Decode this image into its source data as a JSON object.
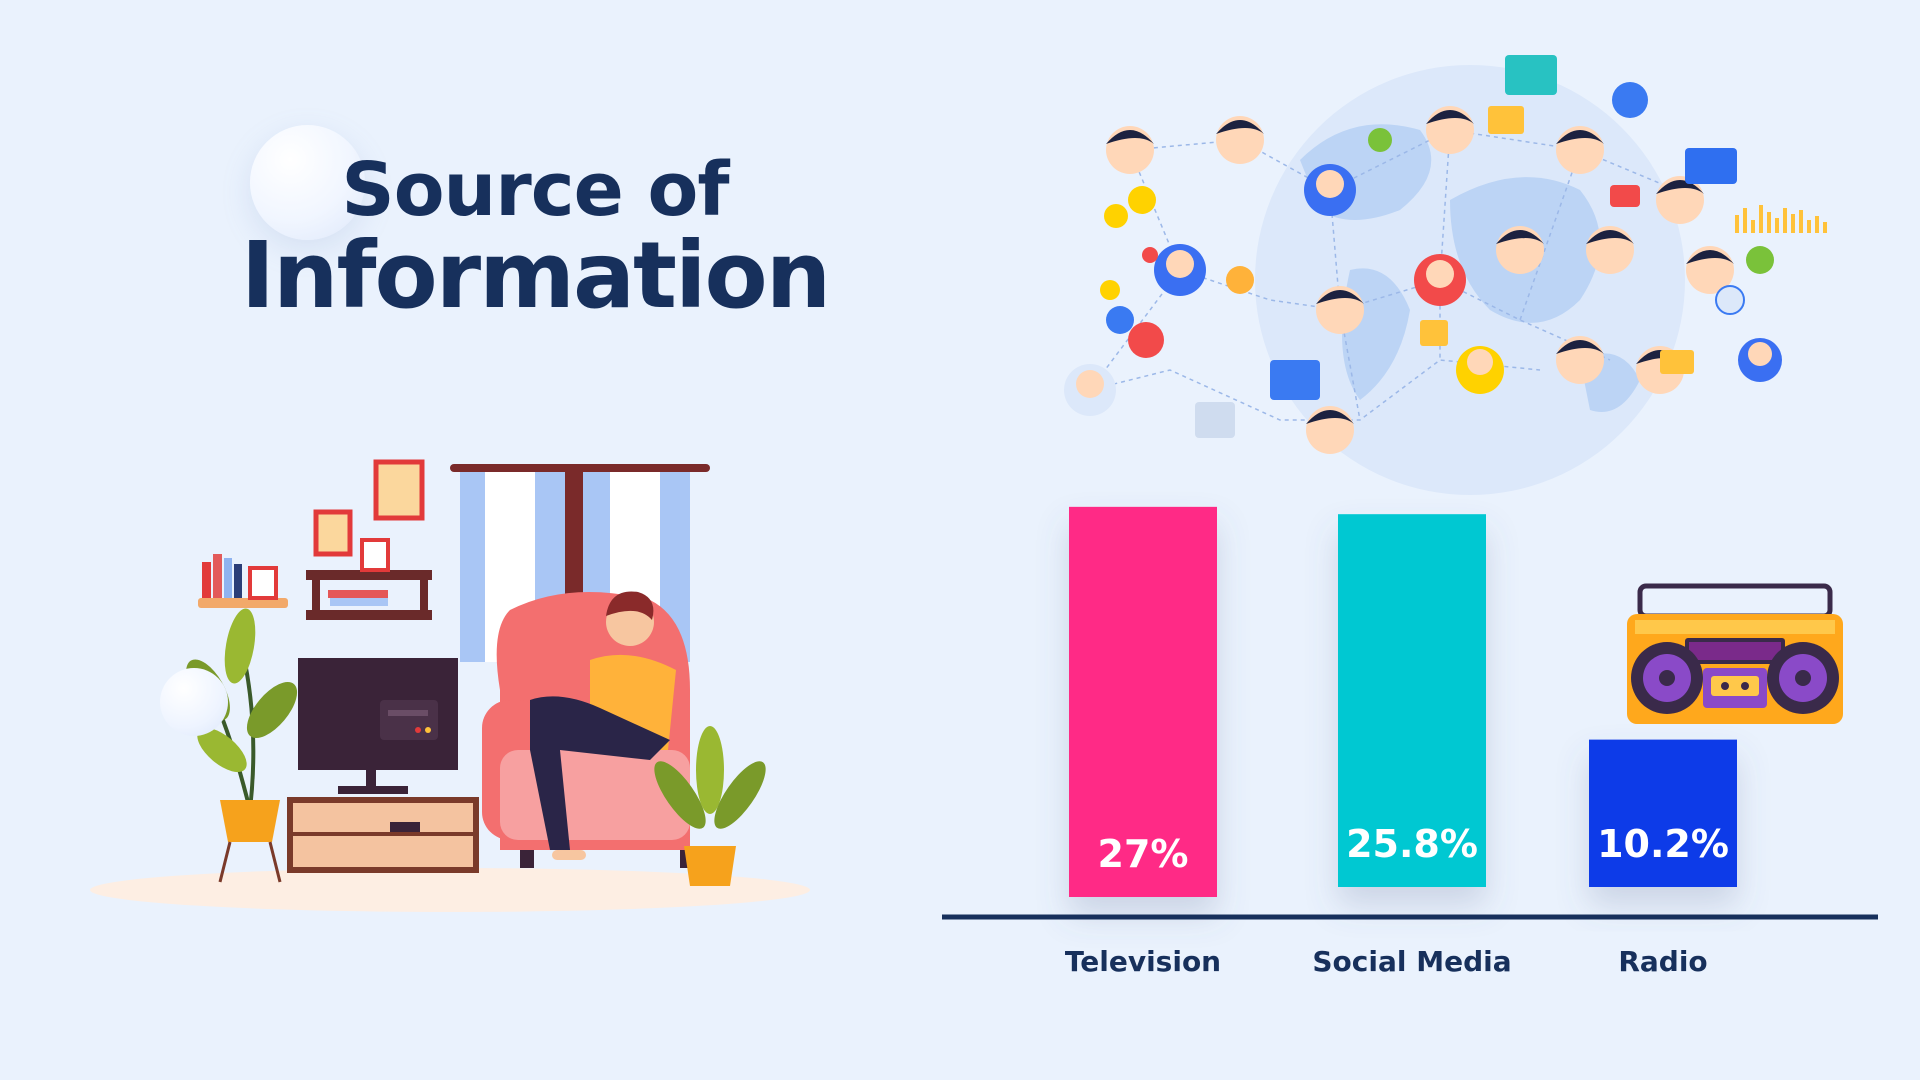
{
  "title": {
    "line1": "Source of",
    "line2": "Information"
  },
  "chart_data": {
    "type": "bar",
    "categories": [
      "Television",
      "Social Media",
      "Radio"
    ],
    "values": [
      27,
      25.8,
      10.2
    ],
    "value_labels": [
      "27%",
      "25.8%",
      "10.2%"
    ],
    "colors": [
      "#ff2a86",
      "#00c8d2",
      "#0a3be8"
    ],
    "title": "Source of Information",
    "xlabel": "",
    "ylabel": "",
    "ylim": [
      0,
      30
    ],
    "grid": false,
    "legend": "none"
  },
  "colors": {
    "background": "#eaf2fd",
    "title": "#17305c",
    "axis": "#17305c"
  },
  "illustrations": {
    "living_room": "person-watching-tv-illustration",
    "globe": "globe-social-network-illustration",
    "radio": "boombox-radio-illustration"
  }
}
